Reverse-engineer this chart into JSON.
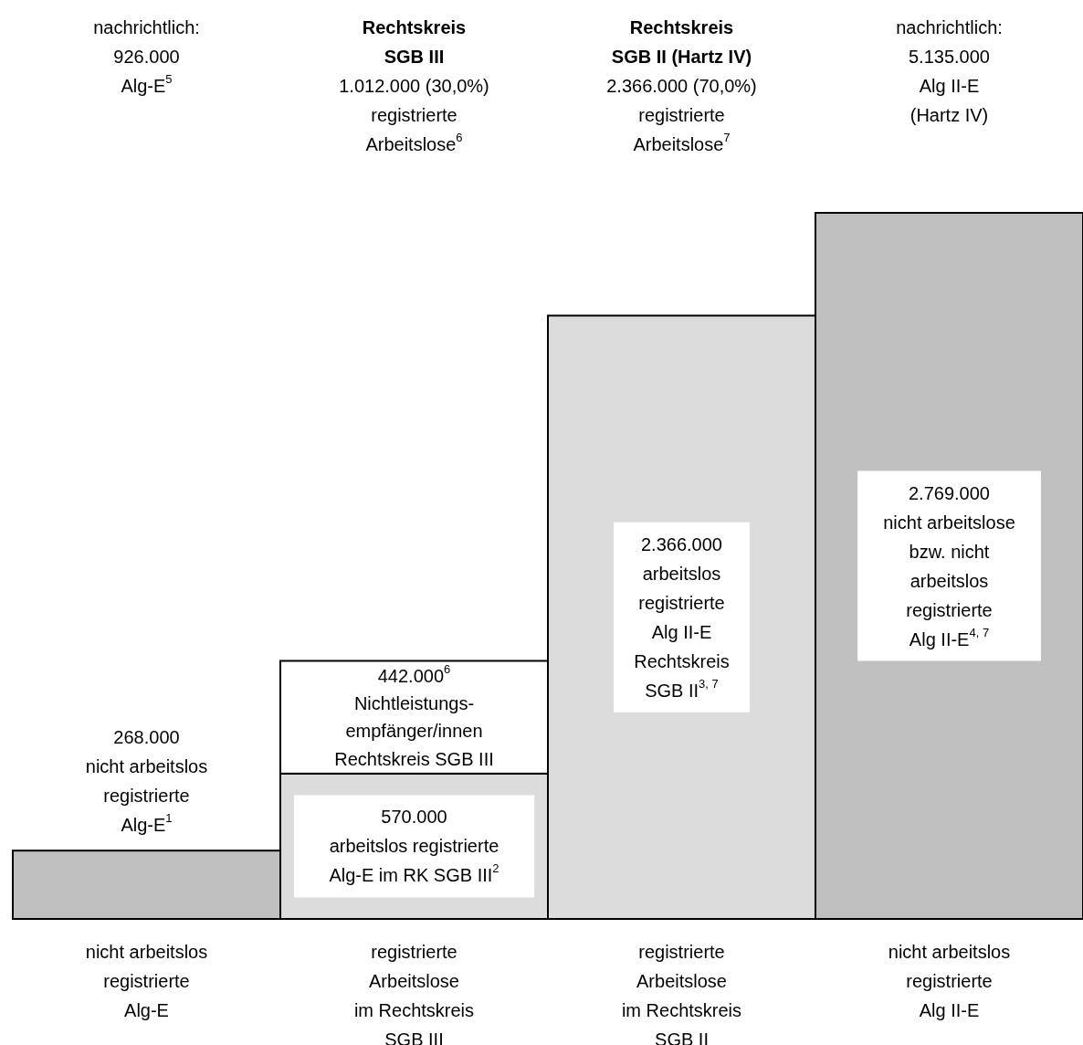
{
  "chart_data": {
    "type": "bar",
    "stacked": true,
    "categories": [
      "nicht arbeitslos\nregistrierte\nAlg-E",
      "registrierte\nArbeitslose\nim Rechtskreis\nSGB III",
      "registrierte\nArbeitslose\nim Rechtskreis\nSGB II",
      "nicht arbeitslos\nregistrierte\nAlg II-E"
    ],
    "series": [
      {
        "colors": [
          "#c0c0c0",
          "#dcdcdc",
          "#dcdcdc",
          "#c0c0c0"
        ],
        "values": [
          268000,
          570000,
          2366000,
          2769000
        ],
        "value_labels": [
          "268.000\nnicht arbeitslos\nregistrierte\nAlg-E$^{1}$",
          "570.000\narbeitslos registrierte\nAlg-E im RK SGB III$^{2}$",
          "2.366.000\narbeitslos\nregistrierte\nAlg II-E\nRechtskreis\nSGB II$^{3, 7}$",
          "2.769.000\nnicht arbeitslose\nbzw. nicht\narbeitslos\nregistrierte\nAlg II-E$^{4, 7}$"
        ]
      },
      {
        "colors": [
          null,
          "#ffffff",
          null,
          null
        ],
        "values": [
          null,
          442000,
          null,
          null
        ],
        "value_labels": [
          null,
          "442.000$^{6}$\nNichtleistungs-\nempfänger/innen\nRechtskreis SGB III",
          null,
          null
        ]
      }
    ],
    "annotations": [
      "nachrichtlich:\n926.000\nAlg-E$^{5}$",
      "Rechtskreis\nSGB III",
      "1.012.000 (30,0%)\nregistrierte\nArbeitslose$^{6}$",
      "Rechtskreis\nSGB II (Hartz IV)",
      "2.366.000 (70,0%)\nregistrierte\nArbeitslose$^{7}$",
      "nachrichtlich:\n5.135.000\nAlg II-E\n(Hartz IV)"
    ]
  }
}
